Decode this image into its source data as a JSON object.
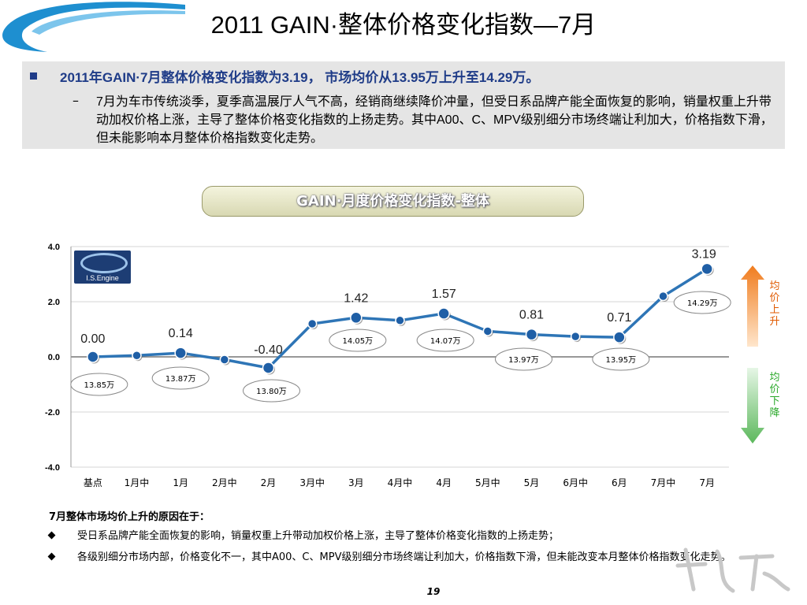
{
  "slide": {
    "title": "2011 GAIN·整体价格变化指数—7月",
    "bullet1": "2011年GAIN·7月整体价格变化指数为3.19， 市场均价从13.95万上升至14.29万。",
    "bullet2": "7月为车市传统淡季，夏季高温展厅人气不高，经销商继续降价冲量，但受日系品牌产能全面恢复的影响，销量权重上升带动加权价格上涨，主导了整体价格变化指数的上扬走势。其中A00、C、MPV级别细分市场终端让利加大，价格指数下滑，但未能影响本月整体价格指数变化走势。",
    "chart_title": "GAIN·月度价格变化指数-整体",
    "logo_text": "I.S.Engine",
    "up_label": "均价上升",
    "down_label": "均价下降",
    "reason_title": "7月整体市场均价上升的原因在于：",
    "reasons": [
      "受日系品牌产能全面恢复的影响，销量权重上升带动加权价格上涨，主导了整体价格变化指数的上扬走势；",
      "各级别细分市场内部，价格变化不一，其中A00、C、MPV级别细分市场终端让利加大，价格指数下滑，但未能改变本月整体价格指数变化走势。"
    ],
    "page_number": "19"
  },
  "chart_data": {
    "type": "line",
    "categories": [
      "基点",
      "1月中",
      "1月",
      "2月中",
      "2月",
      "3月中",
      "3月",
      "4月中",
      "4月",
      "5月中",
      "5月",
      "6月中",
      "6月",
      "7月中",
      "7月"
    ],
    "values": [
      0.0,
      0.05,
      0.14,
      -0.1,
      -0.4,
      1.2,
      1.42,
      1.32,
      1.57,
      0.93,
      0.81,
      0.74,
      0.71,
      2.2,
      3.19
    ],
    "value_labels": [
      "0.00",
      "",
      "0.14",
      "",
      "-0.40",
      "",
      "1.42",
      "",
      "1.57",
      "",
      "0.81",
      "",
      "0.71",
      "",
      "3.19"
    ],
    "price_labels": [
      "13.85万",
      "",
      "13.87万",
      "",
      "13.80万",
      "",
      "14.05万",
      "",
      "14.07万",
      "",
      "13.97万",
      "",
      "13.95万",
      "",
      "14.29万"
    ],
    "yticks": [
      "4.0",
      "2.0",
      "0.0",
      "-2.0",
      "-4.0"
    ],
    "ylim": [
      -4,
      4
    ],
    "grid": true,
    "line_color": "#2e75b6",
    "up_color": "#f07c1e",
    "down_color": "#5cb85c"
  }
}
